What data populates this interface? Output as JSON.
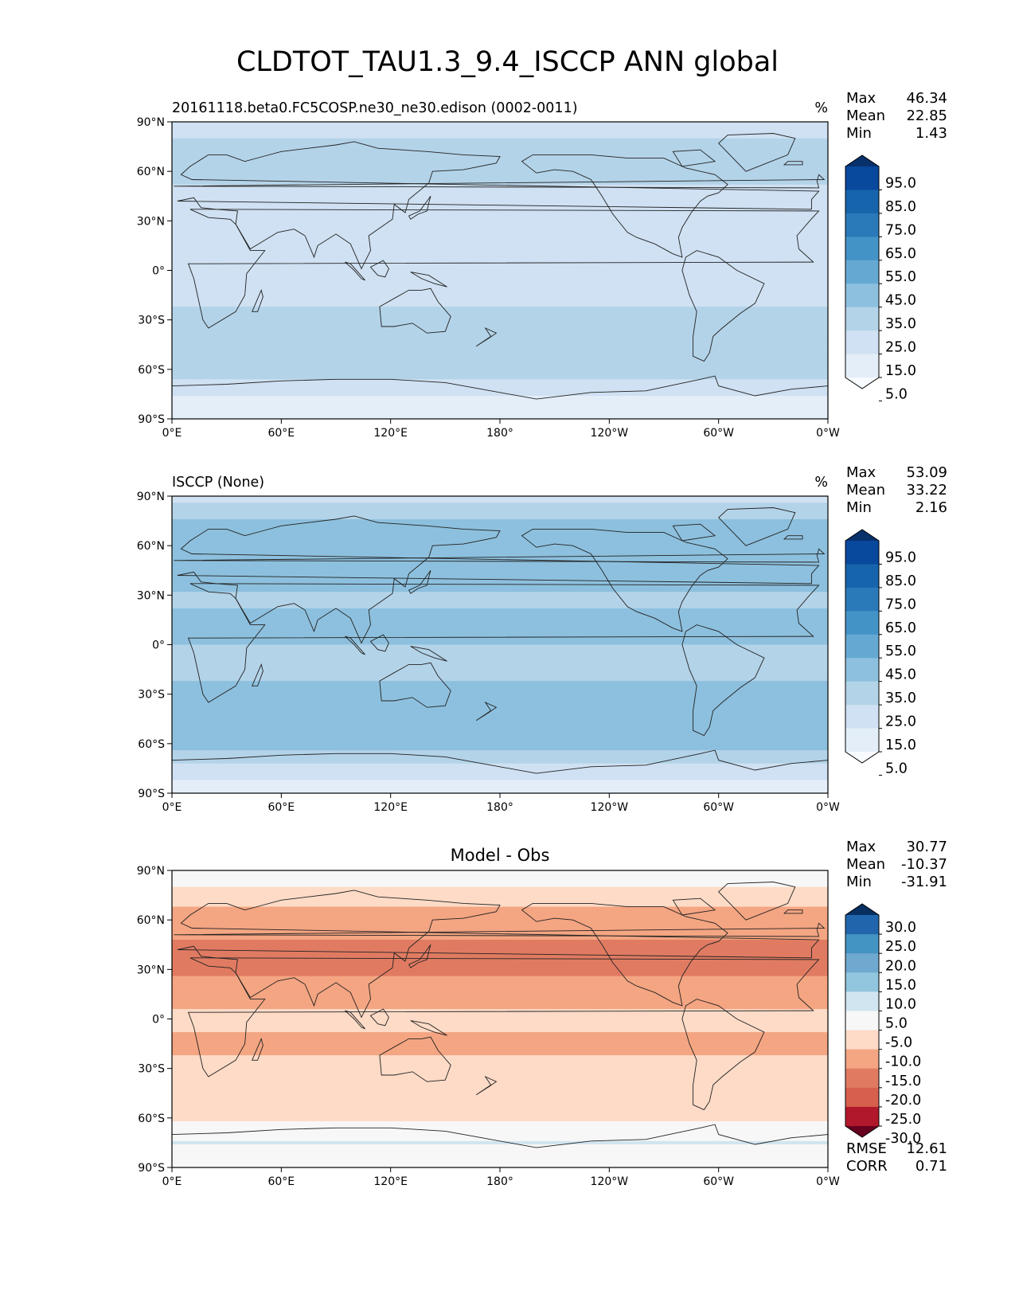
{
  "title": "CLDTOT_TAU1.3_9.4_ISCCP ANN global",
  "lat_ticks": [
    "90°N",
    "60°N",
    "30°N",
    "0°",
    "30°S",
    "60°S",
    "90°S"
  ],
  "lon_ticks": [
    "0°E",
    "60°E",
    "120°E",
    "180°",
    "120°W",
    "60°W",
    "0°W"
  ],
  "panels": [
    {
      "id": "test",
      "left_title": "20161118.beta0.FC5COSP.ne30_ne30.edison (0002-0011)",
      "center_title": "",
      "units": "%",
      "stats": [
        {
          "label": "Max",
          "value": "46.34"
        },
        {
          "label": "Mean",
          "value": "22.85"
        },
        {
          "label": "Min",
          "value": "1.43"
        }
      ],
      "colorbar": {
        "labels": [
          "95.0",
          "85.0",
          "75.0",
          "65.0",
          "55.0",
          "45.0",
          "35.0",
          "25.0",
          "15.0",
          "5.0"
        ],
        "colors": [
          "#08306b",
          "#08489d",
          "#1664ab",
          "#2a7ab9",
          "#4493c7",
          "#65a9d3",
          "#8dc0de",
          "#b3d3e8",
          "#cfe1f2",
          "#e3eef9",
          "#f7fbff"
        ]
      },
      "extra_stats": []
    },
    {
      "id": "reference",
      "left_title": "ISCCP (None)",
      "center_title": "",
      "units": "%",
      "stats": [
        {
          "label": "Max",
          "value": "53.09"
        },
        {
          "label": "Mean",
          "value": "33.22"
        },
        {
          "label": "Min",
          "value": "2.16"
        }
      ],
      "colorbar": {
        "labels": [
          "95.0",
          "85.0",
          "75.0",
          "65.0",
          "55.0",
          "45.0",
          "35.0",
          "25.0",
          "15.0",
          "5.0"
        ],
        "colors": [
          "#08306b",
          "#08489d",
          "#1664ab",
          "#2a7ab9",
          "#4493c7",
          "#65a9d3",
          "#8dc0de",
          "#b3d3e8",
          "#cfe1f2",
          "#e3eef9",
          "#f7fbff"
        ]
      },
      "extra_stats": []
    },
    {
      "id": "difference",
      "left_title": "",
      "center_title": "Model - Obs",
      "units": "",
      "stats": [
        {
          "label": "Max",
          "value": "30.77"
        },
        {
          "label": "Mean",
          "value": "-10.37"
        },
        {
          "label": "Min",
          "value": "-31.91"
        }
      ],
      "colorbar": {
        "labels": [
          "30.0",
          "25.0",
          "20.0",
          "15.0",
          "10.0",
          "5.0",
          "-5.0",
          "-10.0",
          "-15.0",
          "-20.0",
          "-25.0",
          "-30.0"
        ],
        "colors": [
          "#053061",
          "#2166ac",
          "#4393c3",
          "#6fa9d0",
          "#92c5de",
          "#d1e5f0",
          "#f7f7f7",
          "#fddbc7",
          "#f4a582",
          "#e07b62",
          "#d6604d",
          "#b2182b",
          "#67001f"
        ]
      },
      "extra_stats": [
        {
          "label": "RMSE",
          "value": "12.61"
        },
        {
          "label": "CORR",
          "value": "0.71"
        }
      ]
    }
  ],
  "chart_data": [
    {
      "type": "heatmap",
      "title": "20161118.beta0.FC5COSP.ne30_ne30.edison (0002-0011)",
      "units": "%",
      "projection": "global lat-lon, x 0°E to 360° (0°W), y 90°S to 90°N",
      "x_ticks": [
        "0°E",
        "60°E",
        "120°E",
        "180°",
        "120°W",
        "60°W",
        "0°W"
      ],
      "y_ticks": [
        "90°N",
        "60°N",
        "30°N",
        "0°",
        "30°S",
        "60°S",
        "90°S"
      ],
      "stats": {
        "max": 46.34,
        "mean": 22.85,
        "min": 1.43
      },
      "levels": [
        5,
        15,
        25,
        35,
        45,
        55,
        65,
        75,
        85,
        95
      ],
      "colormap": "Blues",
      "zonal_mean_profile": {
        "lat": [
          90,
          75,
          60,
          45,
          30,
          15,
          0,
          -15,
          -30,
          -45,
          -60,
          -75,
          -90
        ],
        "value": [
          20,
          27,
          26,
          24,
          16,
          22,
          25,
          22,
          28,
          32,
          32,
          15,
          8
        ]
      }
    },
    {
      "type": "heatmap",
      "title": "ISCCP (None)",
      "units": "%",
      "projection": "global lat-lon, x 0°E to 360° (0°W), y 90°S to 90°N",
      "x_ticks": [
        "0°E",
        "60°E",
        "120°E",
        "180°",
        "120°W",
        "60°W",
        "0°W"
      ],
      "y_ticks": [
        "90°N",
        "60°N",
        "30°N",
        "0°",
        "30°S",
        "60°S",
        "90°S"
      ],
      "stats": {
        "max": 53.09,
        "mean": 33.22,
        "min": 2.16
      },
      "levels": [
        5,
        15,
        25,
        35,
        45,
        55,
        65,
        75,
        85,
        95
      ],
      "colormap": "Blues",
      "zonal_mean_profile": {
        "lat": [
          90,
          75,
          60,
          45,
          30,
          15,
          0,
          -15,
          -30,
          -45,
          -60,
          -75,
          -90
        ],
        "value": [
          20,
          36,
          38,
          42,
          34,
          36,
          35,
          34,
          36,
          42,
          40,
          20,
          8
        ]
      }
    },
    {
      "type": "heatmap",
      "title": "Model - Obs",
      "units": "",
      "projection": "global lat-lon, x 0°E to 360° (0°W), y 90°S to 90°N",
      "x_ticks": [
        "0°E",
        "60°E",
        "120°E",
        "180°",
        "120°W",
        "60°W",
        "0°W"
      ],
      "y_ticks": [
        "90°N",
        "60°N",
        "30°N",
        "0°",
        "30°S",
        "60°S",
        "90°S"
      ],
      "stats": {
        "max": 30.77,
        "mean": -10.37,
        "min": -31.91,
        "rmse": 12.61,
        "corr": 0.71
      },
      "levels": [
        -30,
        -25,
        -20,
        -15,
        -10,
        -5,
        5,
        10,
        15,
        20,
        25,
        30
      ],
      "colormap": "RdBu",
      "zonal_mean_profile": {
        "lat": [
          90,
          75,
          60,
          45,
          30,
          15,
          0,
          -15,
          -30,
          -45,
          -60,
          -75,
          -90
        ],
        "value": [
          2,
          -8,
          -12,
          -16,
          -16,
          -13,
          -8,
          -12,
          -8,
          -9,
          -6,
          5,
          0
        ]
      }
    }
  ]
}
